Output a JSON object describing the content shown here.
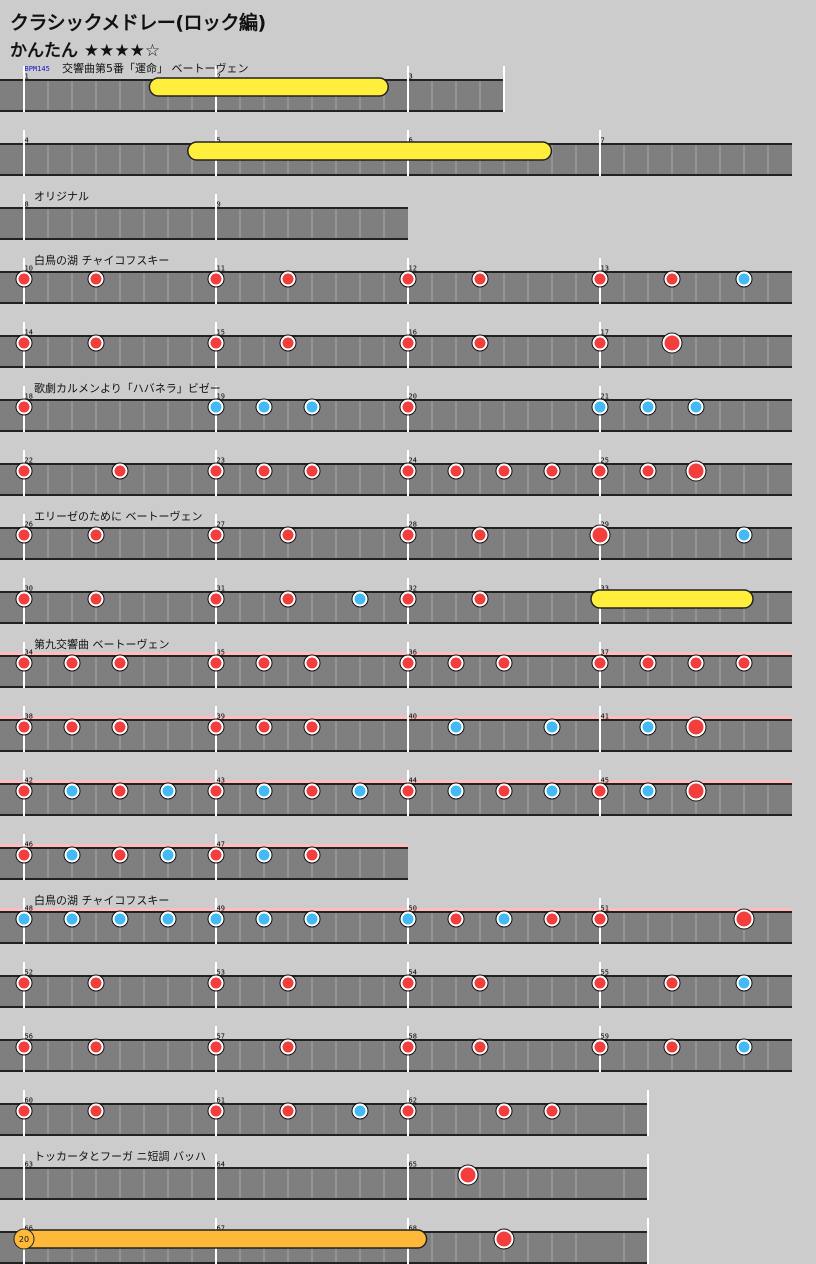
{
  "chart": {
    "title": "クラシックメドレー(ロック編)",
    "difficulty": "かんたん ★★★★☆",
    "bpm": "BPM145",
    "rows": [
      {
        "bars": [
          1,
          2,
          3
        ],
        "len": 2.5,
        "label": "交響曲第5番「運命」 ベートーヴェン",
        "notes": [],
        "rolls": [
          {
            "s": 0.7,
            "e": 1.85,
            "c": "y"
          }
        ]
      },
      {
        "bars": [
          4,
          5,
          6,
          7
        ],
        "len": 4,
        "notes": [],
        "rolls": [
          {
            "s": 0.9,
            "e": 2.7,
            "c": "y"
          }
        ]
      },
      {
        "bars": [
          8,
          9
        ],
        "len": 2,
        "label": "オリジナル",
        "notes": [],
        "rolls": []
      },
      {
        "bars": [
          10,
          11,
          12,
          13
        ],
        "len": 4,
        "label": "白鳥の湖 チャイコフスキー",
        "notes": [
          [
            0,
            "d"
          ],
          [
            0.375,
            "d"
          ],
          [
            1,
            "d"
          ],
          [
            1.375,
            "d"
          ],
          [
            2,
            "d"
          ],
          [
            2.375,
            "d"
          ],
          [
            3,
            "d"
          ],
          [
            3.375,
            "d"
          ],
          [
            3.75,
            "k"
          ]
        ]
      },
      {
        "bars": [
          14,
          15,
          16,
          17
        ],
        "len": 4,
        "notes": [
          [
            0,
            "d"
          ],
          [
            0.375,
            "d"
          ],
          [
            1,
            "d"
          ],
          [
            1.375,
            "d"
          ],
          [
            2,
            "d"
          ],
          [
            2.375,
            "d"
          ],
          [
            3,
            "d"
          ],
          [
            3.375,
            "D"
          ]
        ]
      },
      {
        "bars": [
          18,
          19,
          20,
          21
        ],
        "len": 4,
        "label": "歌劇カルメンより「ハバネラ」ビゼー",
        "notes": [
          [
            0,
            "d"
          ],
          [
            1,
            "k"
          ],
          [
            1.25,
            "k"
          ],
          [
            1.5,
            "k"
          ],
          [
            2,
            "d"
          ],
          [
            3,
            "k"
          ],
          [
            3.25,
            "k"
          ],
          [
            3.5,
            "k"
          ]
        ]
      },
      {
        "bars": [
          22,
          23,
          24,
          25
        ],
        "len": 4,
        "notes": [
          [
            0,
            "d"
          ],
          [
            0.5,
            "d"
          ],
          [
            1,
            "d"
          ],
          [
            1.25,
            "d"
          ],
          [
            1.5,
            "d"
          ],
          [
            2,
            "d"
          ],
          [
            2.25,
            "d"
          ],
          [
            2.5,
            "d"
          ],
          [
            2.75,
            "d"
          ],
          [
            3,
            "d"
          ],
          [
            3.25,
            "d"
          ],
          [
            3.5,
            "D"
          ]
        ]
      },
      {
        "bars": [
          26,
          27,
          28,
          29
        ],
        "len": 4,
        "label": "エリーゼのために ベートーヴェン",
        "notes": [
          [
            0,
            "d"
          ],
          [
            0.375,
            "d"
          ],
          [
            1,
            "d"
          ],
          [
            1.375,
            "d"
          ],
          [
            2,
            "d"
          ],
          [
            2.375,
            "d"
          ],
          [
            3,
            "D"
          ],
          [
            3.75,
            "k"
          ]
        ]
      },
      {
        "bars": [
          30,
          31,
          32,
          33
        ],
        "len": 4,
        "notes": [
          [
            0,
            "d"
          ],
          [
            0.375,
            "d"
          ],
          [
            1,
            "d"
          ],
          [
            1.375,
            "d"
          ],
          [
            1.75,
            "k"
          ],
          [
            2,
            "d"
          ],
          [
            2.375,
            "d"
          ]
        ],
        "rolls": [
          {
            "s": 3,
            "e": 3.75,
            "c": "y"
          }
        ]
      },
      {
        "bars": [
          34,
          35,
          36,
          37
        ],
        "len": 4,
        "pink": true,
        "label": "第九交響曲 ベートーヴェン",
        "notes": [
          [
            0,
            "d"
          ],
          [
            0.25,
            "d"
          ],
          [
            0.5,
            "d"
          ],
          [
            1,
            "d"
          ],
          [
            1.25,
            "d"
          ],
          [
            1.5,
            "d"
          ],
          [
            2,
            "d"
          ],
          [
            2.25,
            "d"
          ],
          [
            2.5,
            "d"
          ],
          [
            3,
            "d"
          ],
          [
            3.25,
            "d"
          ],
          [
            3.5,
            "d"
          ],
          [
            3.75,
            "d"
          ]
        ]
      },
      {
        "bars": [
          38,
          39,
          40,
          41
        ],
        "len": 4,
        "pink": true,
        "notes": [
          [
            0,
            "d"
          ],
          [
            0.25,
            "d"
          ],
          [
            0.5,
            "d"
          ],
          [
            1,
            "d"
          ],
          [
            1.25,
            "d"
          ],
          [
            1.5,
            "d"
          ],
          [
            2.25,
            "k"
          ],
          [
            2.75,
            "k"
          ],
          [
            3.25,
            "k"
          ],
          [
            3.5,
            "D"
          ]
        ]
      },
      {
        "bars": [
          42,
          43,
          44,
          45
        ],
        "len": 4,
        "pink": true,
        "notes": [
          [
            0,
            "d"
          ],
          [
            0.25,
            "k"
          ],
          [
            0.5,
            "d"
          ],
          [
            0.75,
            "k"
          ],
          [
            1,
            "d"
          ],
          [
            1.25,
            "k"
          ],
          [
            1.5,
            "d"
          ],
          [
            1.75,
            "k"
          ],
          [
            2,
            "d"
          ],
          [
            2.25,
            "k"
          ],
          [
            2.5,
            "d"
          ],
          [
            2.75,
            "k"
          ],
          [
            3,
            "d"
          ],
          [
            3.25,
            "k"
          ],
          [
            3.5,
            "D"
          ]
        ]
      },
      {
        "bars": [
          46,
          47
        ],
        "len": 2,
        "pink": true,
        "notes": [
          [
            0,
            "d"
          ],
          [
            0.25,
            "k"
          ],
          [
            0.5,
            "d"
          ],
          [
            0.75,
            "k"
          ],
          [
            1,
            "d"
          ],
          [
            1.25,
            "k"
          ],
          [
            1.5,
            "d"
          ]
        ]
      },
      {
        "bars": [
          48,
          49,
          50,
          51
        ],
        "len": 4,
        "pink": true,
        "label": "白鳥の湖 チャイコフスキー",
        "notes": [
          [
            0,
            "k"
          ],
          [
            0.25,
            "k"
          ],
          [
            0.5,
            "k"
          ],
          [
            0.75,
            "k"
          ],
          [
            1,
            "k"
          ],
          [
            1.25,
            "k"
          ],
          [
            1.5,
            "k"
          ],
          [
            2,
            "k"
          ],
          [
            2.25,
            "d"
          ],
          [
            2.5,
            "k"
          ],
          [
            2.75,
            "d"
          ],
          [
            3,
            "d"
          ],
          [
            3.75,
            "D"
          ]
        ]
      },
      {
        "bars": [
          52,
          53,
          54,
          55
        ],
        "len": 4,
        "notes": [
          [
            0,
            "d"
          ],
          [
            0.375,
            "d"
          ],
          [
            1,
            "d"
          ],
          [
            1.375,
            "d"
          ],
          [
            2,
            "d"
          ],
          [
            2.375,
            "d"
          ],
          [
            3,
            "d"
          ],
          [
            3.375,
            "d"
          ],
          [
            3.75,
            "k"
          ]
        ]
      },
      {
        "bars": [
          56,
          57,
          58,
          59
        ],
        "len": 4,
        "notes": [
          [
            0,
            "d"
          ],
          [
            0.375,
            "d"
          ],
          [
            1,
            "d"
          ],
          [
            1.375,
            "d"
          ],
          [
            2,
            "d"
          ],
          [
            2.375,
            "d"
          ],
          [
            3,
            "d"
          ],
          [
            3.375,
            "d"
          ],
          [
            3.75,
            "k"
          ]
        ]
      },
      {
        "bars": [
          60,
          61,
          62
        ],
        "len": 3.25,
        "notes": [
          [
            0,
            "d"
          ],
          [
            0.375,
            "d"
          ],
          [
            1,
            "d"
          ],
          [
            1.375,
            "d"
          ],
          [
            1.75,
            "k"
          ],
          [
            2,
            "d"
          ],
          [
            2.5,
            "d"
          ],
          [
            2.75,
            "d"
          ]
        ]
      },
      {
        "bars": [
          63,
          64,
          65
        ],
        "len": 3.25,
        "label": "トッカータとフーガ ニ短調 バッハ",
        "notes": [
          [
            2.3125,
            "D"
          ]
        ]
      },
      {
        "bars": [
          66,
          67,
          68
        ],
        "len": 3.25,
        "notes": [
          [
            2.5,
            "D"
          ]
        ],
        "rolls": [
          {
            "s": 0,
            "e": 2.05,
            "c": "o",
            "count": "20"
          }
        ]
      }
    ]
  }
}
